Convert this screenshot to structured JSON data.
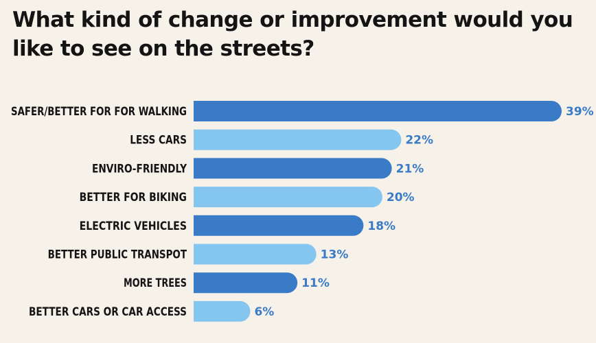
{
  "chart_data": {
    "type": "bar",
    "orientation": "horizontal",
    "title": "What kind of change or improvement would you like to see on the streets?",
    "categories": [
      "SAFER/BETTER FOR FOR WALKING",
      "LESS CARS",
      "ENVIRO-FRIENDLY",
      "BETTER FOR BIKING",
      "ELECTRIC VEHICLES",
      "BETTER PUBLIC TRANSPOT",
      "MORE TREES",
      "BETTER CARS OR CAR ACCESS"
    ],
    "values": [
      39,
      22,
      21,
      20,
      18,
      13,
      11,
      6
    ],
    "value_labels": [
      "39%",
      "22%",
      "21%",
      "20%",
      "18%",
      "13%",
      "11%",
      "6%"
    ],
    "value_unit": "%",
    "xlim": [
      0,
      39
    ],
    "grid": false,
    "legend": "none",
    "colors": {
      "dark_bar": "#3a7bc8",
      "light_bar": "#85c6f0",
      "value_text": "#3a7bc8",
      "background": "#f6f1e9"
    }
  }
}
